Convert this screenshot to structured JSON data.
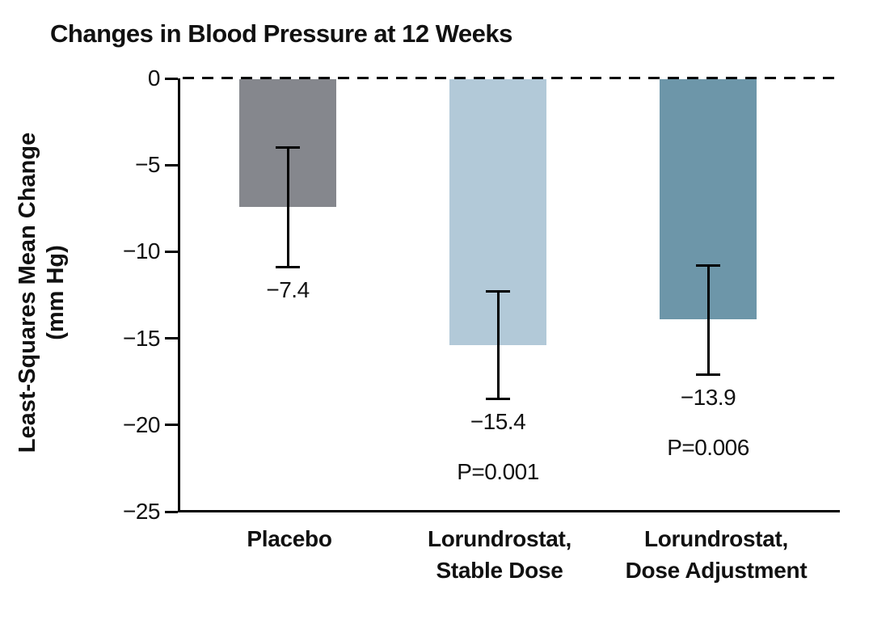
{
  "title": "Changes in Blood Pressure at 12 Weeks",
  "chart_data": {
    "type": "bar",
    "title": "Changes in Blood Pressure at 12 Weeks",
    "ylabel": "Least-Squares Mean Change (mm Hg)",
    "ylabel_lines": [
      "Least-Squares Mean Change",
      "(mm Hg)"
    ],
    "ylabel_unit": "mm Hg",
    "ylim": [
      -25,
      0
    ],
    "yticks": [
      0,
      -5,
      -10,
      -15,
      -20,
      -25
    ],
    "ytick_labels": [
      "0",
      "−5",
      "−10",
      "−15",
      "−20",
      "−25"
    ],
    "grid": false,
    "legend": "none",
    "zero_line_style": "dashed",
    "orientation": "vertical",
    "categories": [
      "Placebo",
      "Lorundrostat, Stable Dose",
      "Lorundrostat, Dose Adjustment"
    ],
    "bars": [
      {
        "category_lines": [
          "Placebo"
        ],
        "value": -7.4,
        "value_label": "−7.4",
        "error_bar": [
          -4.0,
          -10.9
        ],
        "p_value_label": "",
        "color": "#85878D"
      },
      {
        "category_lines": [
          "Lorundrostat,",
          "Stable Dose"
        ],
        "value": -15.4,
        "value_label": "−15.4",
        "error_bar": [
          -12.3,
          -18.5
        ],
        "p_value_label": "P=0.001",
        "color": "#B2C9D8"
      },
      {
        "category_lines": [
          "Lorundrostat,",
          "Dose Adjustment"
        ],
        "value": -13.9,
        "value_label": "−13.9",
        "error_bar": [
          -10.8,
          -17.1
        ],
        "p_value_label": "P=0.006",
        "color": "#6D96A9"
      }
    ]
  },
  "colors": {
    "axis": "#000000",
    "text": "#111111",
    "background": "#FFFFFF"
  }
}
